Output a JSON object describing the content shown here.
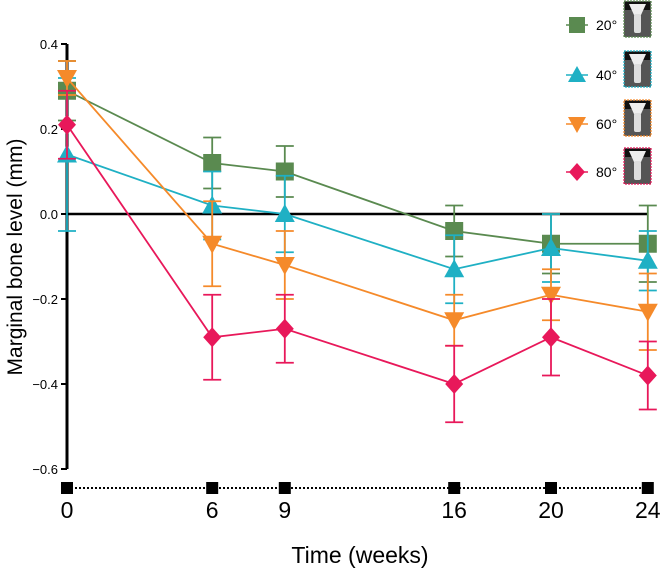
{
  "chart_data": {
    "type": "line",
    "title": "",
    "xlabel": "Time (weeks)",
    "ylabel": "Marginal bone level (mm)",
    "x": [
      0,
      6,
      9,
      16,
      20,
      24
    ],
    "x_tick_labels": [
      "0",
      "6",
      "9",
      "16",
      "20",
      "24"
    ],
    "ylim": [
      -0.6,
      0.4
    ],
    "y_ticks": [
      0.4,
      0.2,
      0.0,
      -0.2,
      -0.4,
      -0.6
    ],
    "y_tick_labels": [
      "0.4",
      "0.2",
      "0.0",
      "−0.2",
      "−0.4",
      "−0.6"
    ],
    "grid": false,
    "legend_position": "top-right",
    "series": [
      {
        "name": "20°",
        "color": "#5a8a50",
        "marker": "square",
        "values": [
          0.29,
          0.12,
          0.1,
          -0.04,
          -0.07,
          -0.07
        ],
        "error": [
          0.07,
          0.06,
          0.06,
          0.06,
          0.07,
          0.09
        ]
      },
      {
        "name": "40°",
        "color": "#1fb0c4",
        "marker": "triangle-up",
        "values": [
          0.14,
          0.02,
          0.0,
          -0.13,
          -0.08,
          -0.11
        ],
        "error": [
          0.18,
          0.08,
          0.09,
          0.08,
          0.08,
          0.07
        ]
      },
      {
        "name": "60°",
        "color": "#f58a2a",
        "marker": "triangle-down",
        "values": [
          0.32,
          -0.07,
          -0.12,
          -0.25,
          -0.19,
          -0.23
        ],
        "error": [
          0.04,
          0.1,
          0.08,
          0.06,
          0.06,
          0.09
        ]
      },
      {
        "name": "80°",
        "color": "#e8185a",
        "marker": "diamond",
        "values": [
          0.21,
          -0.29,
          -0.27,
          -0.4,
          -0.29,
          -0.38
        ],
        "error": [
          0.08,
          0.1,
          0.08,
          0.09,
          0.09,
          0.08
        ]
      }
    ]
  }
}
